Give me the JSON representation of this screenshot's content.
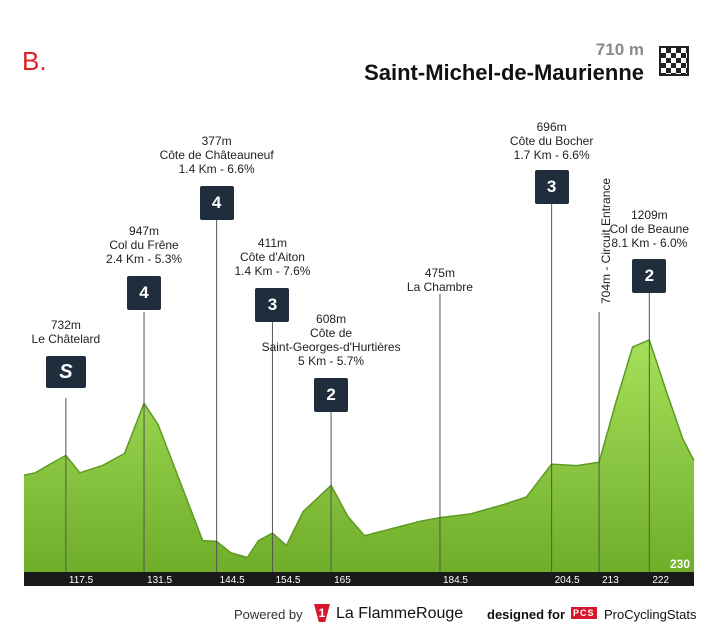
{
  "header": {
    "stage_letter": "B.",
    "finish_altitude": "710 m",
    "finish_name": "Saint-Michel-de-Maurienne"
  },
  "colors": {
    "terrain_top": "#a6e05a",
    "terrain_bottom": "#6fae2a",
    "badge": "#1f2d3d",
    "axis_bar": "#1a1a1a",
    "accent_red": "#e02020"
  },
  "icons": {
    "finish": "checkered-flag-icon",
    "sprint": "sprint-icon",
    "logo_lfr": "la-flamme-rouge-logo-icon",
    "logo_pcs": "pcs-logo-icon"
  },
  "chart_data": {
    "type": "area",
    "title": "",
    "xlabel": "",
    "ylabel": "",
    "x_range": [
      110,
      230
    ],
    "profile": [
      {
        "km": 110,
        "alt": 650
      },
      {
        "km": 112,
        "alt": 660
      },
      {
        "km": 115,
        "alt": 700
      },
      {
        "km": 117.5,
        "alt": 732
      },
      {
        "km": 120,
        "alt": 660
      },
      {
        "km": 124,
        "alt": 690
      },
      {
        "km": 128,
        "alt": 740
      },
      {
        "km": 131.5,
        "alt": 947
      },
      {
        "km": 134,
        "alt": 860
      },
      {
        "km": 137,
        "alt": 680
      },
      {
        "km": 140,
        "alt": 500
      },
      {
        "km": 142,
        "alt": 380
      },
      {
        "km": 144.5,
        "alt": 377
      },
      {
        "km": 147,
        "alt": 330
      },
      {
        "km": 150,
        "alt": 310
      },
      {
        "km": 152,
        "alt": 380
      },
      {
        "km": 154.5,
        "alt": 411
      },
      {
        "km": 157,
        "alt": 360
      },
      {
        "km": 160,
        "alt": 500
      },
      {
        "km": 165,
        "alt": 608
      },
      {
        "km": 168,
        "alt": 480
      },
      {
        "km": 171,
        "alt": 400
      },
      {
        "km": 176,
        "alt": 430
      },
      {
        "km": 181,
        "alt": 460
      },
      {
        "km": 184.5,
        "alt": 475
      },
      {
        "km": 190,
        "alt": 490
      },
      {
        "km": 196,
        "alt": 530
      },
      {
        "km": 200,
        "alt": 560
      },
      {
        "km": 204.5,
        "alt": 696
      },
      {
        "km": 209,
        "alt": 690
      },
      {
        "km": 213,
        "alt": 704
      },
      {
        "km": 216,
        "alt": 950
      },
      {
        "km": 219,
        "alt": 1180
      },
      {
        "km": 222,
        "alt": 1209
      },
      {
        "km": 225,
        "alt": 1000
      },
      {
        "km": 228,
        "alt": 800
      },
      {
        "km": 230,
        "alt": 710
      }
    ],
    "markers": [
      {
        "km": 117.5,
        "name": "Le Châtelard",
        "alt_label": "732m",
        "detail": "",
        "badge": "sprint",
        "badge_text": "S",
        "km_label": "117.5"
      },
      {
        "km": 131.5,
        "name": "Col du Frêne",
        "alt_label": "947m",
        "detail": "2.4 Km - 5.3%",
        "badge": "cat",
        "badge_text": "4",
        "km_label": "131.5"
      },
      {
        "km": 144.5,
        "name": "Côte de Châteauneuf",
        "alt_label": "377m",
        "detail": "1.4 Km - 6.6%",
        "badge": "cat",
        "badge_text": "4",
        "km_label": "144.5"
      },
      {
        "km": 154.5,
        "name": "Côte d'Aiton",
        "alt_label": "411m",
        "detail": "1.4 Km - 7.6%",
        "badge": "cat",
        "badge_text": "3",
        "km_label": "154.5"
      },
      {
        "km": 165,
        "name": "Côte de Saint-Georges-d'Hurtières",
        "name_line1": "Côte de",
        "name_line2": "Saint-Georges-d'Hurtières",
        "alt_label": "608m",
        "detail": "5 Km - 5.7%",
        "badge": "cat",
        "badge_text": "2",
        "km_label": "165"
      },
      {
        "km": 184.5,
        "name": "La Chambre",
        "alt_label": "475m",
        "detail": "",
        "badge": "",
        "badge_text": "",
        "km_label": "184.5"
      },
      {
        "km": 204.5,
        "name": "Côte du Bocher",
        "alt_label": "696m",
        "detail": "1.7 Km - 6.6%",
        "badge": "cat",
        "badge_text": "3",
        "km_label": "204.5"
      },
      {
        "km": 213,
        "name": "Circuit Entrance",
        "alt_label": "704m",
        "detail": "",
        "badge": "",
        "badge_text": "",
        "km_label": "213",
        "vertical_text": "704m - Circuit Entrance"
      },
      {
        "km": 222,
        "name": "Col de Beaune",
        "alt_label": "1209m",
        "detail": "8.1 Km - 6.0%",
        "badge": "cat",
        "badge_text": "2",
        "km_label": "222"
      }
    ],
    "end_km_label": "230"
  },
  "footer": {
    "powered_by": "Powered by",
    "lfr_mark": "1",
    "lfr_name": "La FlammeRouge",
    "designed_for": "designed for",
    "pcs_mark": "PCS",
    "pcs_name": "ProCyclingStats"
  }
}
